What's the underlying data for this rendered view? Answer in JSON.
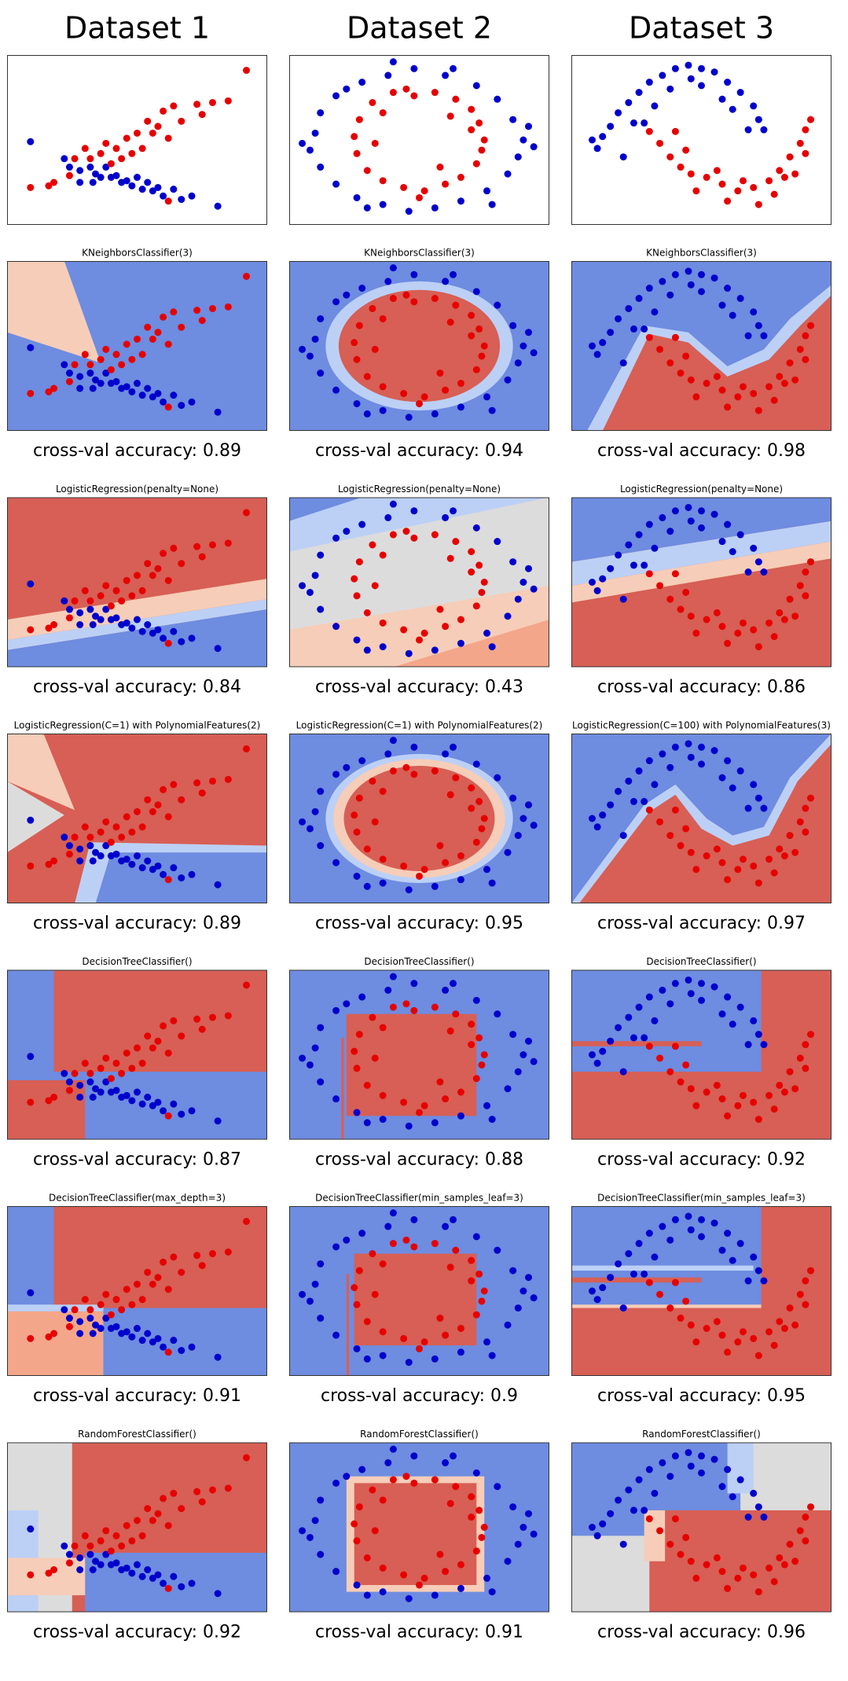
{
  "headers": [
    "Dataset 1",
    "Dataset 2",
    "Dataset 3"
  ],
  "point_colors": {
    "red": "#e60000",
    "blue": "#0000cc"
  },
  "datasets": [
    {
      "red": {
        "x": [
          92,
          85,
          79,
          73,
          75,
          64,
          67,
          60,
          58,
          62,
          54,
          56,
          50,
          52,
          46,
          48,
          42,
          44,
          38,
          36,
          32,
          30,
          26,
          24,
          18,
          9,
          16,
          40,
          62
        ],
        "y": [
          91,
          73,
          72,
          71,
          65,
          70,
          61,
          67,
          58,
          51,
          61,
          54,
          54,
          45,
          51,
          42,
          45,
          39,
          48,
          42,
          39,
          45,
          39,
          29,
          25,
          22,
          23,
          36,
          14
        ]
      },
      "blue": {
        "x": [
          9,
          22,
          24,
          28,
          32,
          34,
          36,
          38,
          40,
          42,
          44,
          46,
          48,
          50,
          52,
          54,
          56,
          58,
          60,
          64,
          67,
          71,
          81,
          33,
          28
        ],
        "y": [
          49,
          39,
          34,
          32,
          34,
          30,
          28,
          34,
          28,
          29,
          25,
          26,
          23,
          28,
          21,
          25,
          20,
          22,
          17,
          21,
          15,
          17,
          11,
          25,
          25
        ]
      }
    },
    {
      "red": {
        "x": [
          75,
          73,
          70,
          64,
          56,
          48,
          40,
          32,
          27,
          25,
          26,
          30,
          36,
          44,
          52,
          60,
          66,
          72,
          74,
          62,
          36,
          58,
          70,
          33,
          50,
          45
        ],
        "y": [
          50,
          60,
          68,
          74,
          78,
          76,
          78,
          72,
          62,
          52,
          42,
          32,
          26,
          22,
          20,
          24,
          28,
          36,
          44,
          64,
          66,
          34,
          56,
          48,
          16,
          80
        ]
      },
      "blue": {
        "x": [
          90,
          86,
          80,
          72,
          60,
          48,
          38,
          28,
          18,
          12,
          10,
          8,
          12,
          18,
          26,
          36,
          46,
          56,
          66,
          76,
          84,
          88,
          94,
          5,
          40,
          63,
          22,
          30,
          78,
          92
        ],
        "y": [
          50,
          62,
          74,
          82,
          88,
          92,
          88,
          84,
          76,
          66,
          54,
          44,
          34,
          24,
          16,
          12,
          8,
          10,
          14,
          20,
          30,
          40,
          46,
          48,
          96,
          92,
          80,
          10,
          12,
          58
        ]
      }
    },
    {
      "red": {
        "x": [
          30,
          34,
          38,
          42,
          46,
          52,
          58,
          64,
          70,
          76,
          80,
          84,
          88,
          90,
          92,
          86,
          78,
          66,
          56,
          48,
          60,
          72,
          82,
          44,
          40,
          90
        ],
        "y": [
          55,
          48,
          40,
          34,
          30,
          28,
          24,
          20,
          22,
          26,
          32,
          40,
          48,
          56,
          62,
          30,
          18,
          26,
          32,
          20,
          14,
          12,
          28,
          44,
          55,
          42
        ]
      },
      "blue": {
        "x": [
          10,
          12,
          15,
          18,
          22,
          26,
          30,
          35,
          40,
          45,
          50,
          55,
          60,
          65,
          70,
          72,
          74,
          20,
          28,
          38,
          50,
          58,
          62,
          32,
          46,
          68,
          8,
          24
        ],
        "y": [
          45,
          52,
          58,
          66,
          72,
          78,
          84,
          88,
          92,
          94,
          92,
          90,
          84,
          78,
          70,
          62,
          56,
          40,
          60,
          80,
          82,
          74,
          68,
          70,
          86,
          56,
          50,
          60
        ]
      }
    }
  ],
  "rows": [
    {
      "panels": [
        {
          "title": "KNeighborsClassifier(3)",
          "caption": "cross-val accuracy: 0.89"
        },
        {
          "title": "KNeighborsClassifier(3)",
          "caption": "cross-val accuracy: 0.94"
        },
        {
          "title": "KNeighborsClassifier(3)",
          "caption": "cross-val accuracy: 0.98"
        }
      ]
    },
    {
      "panels": [
        {
          "title": "LogisticRegression(penalty=None)",
          "caption": "cross-val accuracy: 0.84"
        },
        {
          "title": "LogisticRegression(penalty=None)",
          "caption": "cross-val accuracy: 0.43"
        },
        {
          "title": "LogisticRegression(penalty=None)",
          "caption": "cross-val accuracy: 0.86"
        }
      ]
    },
    {
      "panels": [
        {
          "title": "LogisticRegression(C=1) with PolynomialFeatures(2)",
          "caption": "cross-val accuracy: 0.89"
        },
        {
          "title": "LogisticRegression(C=1) with PolynomialFeatures(2)",
          "caption": "cross-val accuracy: 0.95"
        },
        {
          "title": "LogisticRegression(C=100) with PolynomialFeatures(3)",
          "caption": "cross-val accuracy: 0.97"
        }
      ]
    },
    {
      "panels": [
        {
          "title": "DecisionTreeClassifier()",
          "caption": "cross-val accuracy: 0.87"
        },
        {
          "title": "DecisionTreeClassifier()",
          "caption": "cross-val accuracy: 0.88"
        },
        {
          "title": "DecisionTreeClassifier()",
          "caption": "cross-val accuracy: 0.92"
        }
      ]
    },
    {
      "panels": [
        {
          "title": "DecisionTreeClassifier(max_depth=3)",
          "caption": "cross-val accuracy: 0.91"
        },
        {
          "title": "DecisionTreeClassifier(min_samples_leaf=3)",
          "caption": "cross-val accuracy: 0.9"
        },
        {
          "title": "DecisionTreeClassifier(min_samples_leaf=3)",
          "caption": "cross-val accuracy: 0.95"
        }
      ]
    },
    {
      "panels": [
        {
          "title": "RandomForestClassifier()",
          "caption": "cross-val accuracy: 0.92"
        },
        {
          "title": "RandomForestClassifier()",
          "caption": "cross-val accuracy: 0.91"
        },
        {
          "title": "RandomForestClassifier()",
          "caption": "cross-val accuracy: 0.96"
        }
      ]
    }
  ]
}
